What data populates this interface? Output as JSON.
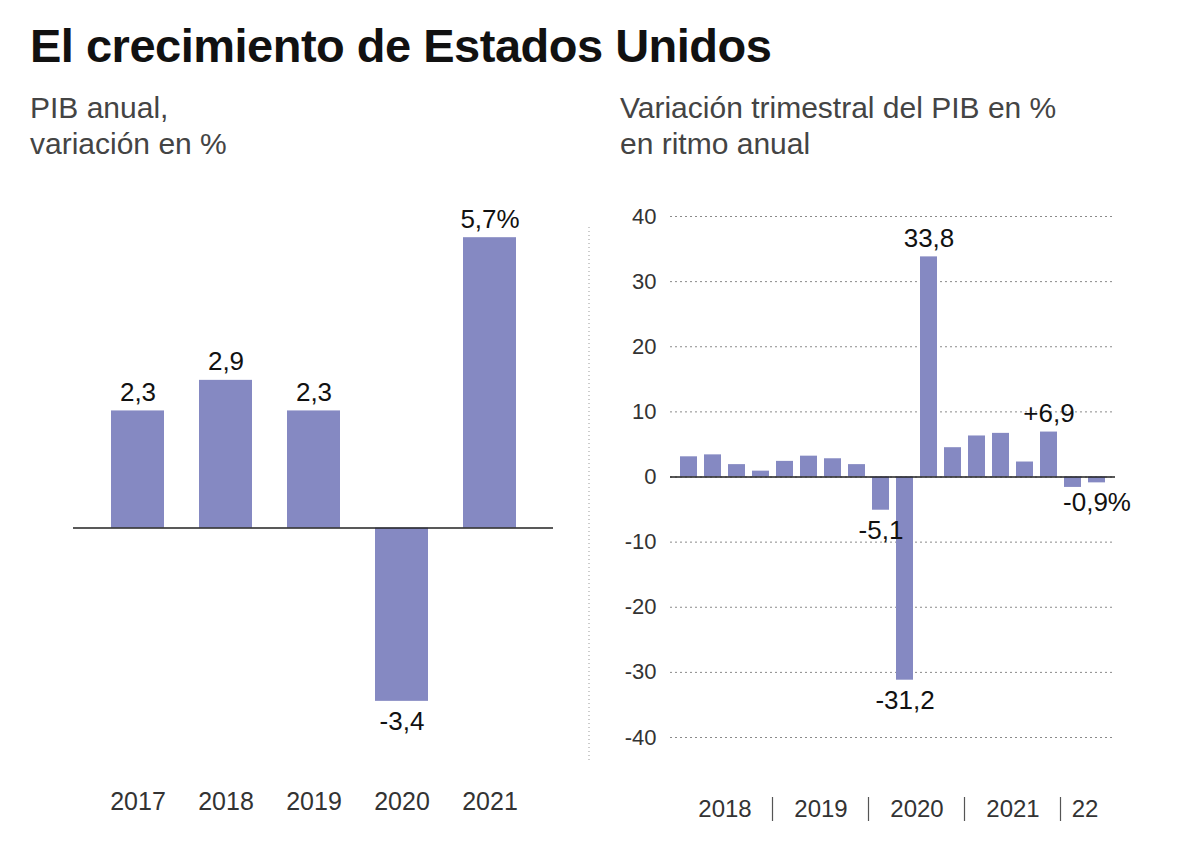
{
  "title": "El crecimiento de Estados Unidos",
  "chart_data": [
    {
      "type": "bar",
      "subtitle": "PIB anual, variación en %",
      "categories": [
        "2017",
        "2018",
        "2019",
        "2020",
        "2021"
      ],
      "values": [
        2.3,
        2.9,
        2.3,
        -3.4,
        5.7
      ],
      "value_labels": [
        "2,3",
        "2,9",
        "2,3",
        "-3,4",
        "5,7%"
      ],
      "data_labels": true,
      "color": "#8589c2",
      "ylim": [
        -4.6,
        5.9
      ],
      "yticks": [],
      "tick_labels": "x",
      "grid": false
    },
    {
      "type": "bar",
      "subtitle": "Variación trimestral del PIB en % en ritmo anual",
      "categories": [
        null,
        "2018",
        null,
        null,
        null,
        "2019",
        null,
        null,
        null,
        "2020",
        null,
        null,
        null,
        "2021",
        null,
        null,
        "22",
        null
      ],
      "values": [
        3.1,
        3.4,
        1.9,
        0.9,
        2.4,
        3.2,
        2.8,
        1.9,
        -5.1,
        -31.2,
        33.8,
        4.5,
        6.3,
        6.7,
        2.3,
        6.9,
        -1.6,
        -0.9
      ],
      "value_labels": [
        null,
        null,
        null,
        null,
        null,
        null,
        null,
        null,
        "-5,1",
        "-31,2",
        "33,8",
        null,
        null,
        null,
        null,
        "+6,9",
        null,
        "-0,9%"
      ],
      "data_labels": true,
      "color": "#8589c2",
      "ylim": [
        -40,
        40
      ],
      "yticks": [
        -40,
        -30,
        -20,
        -10,
        0,
        10,
        20,
        30,
        40
      ],
      "grid": true
    }
  ]
}
